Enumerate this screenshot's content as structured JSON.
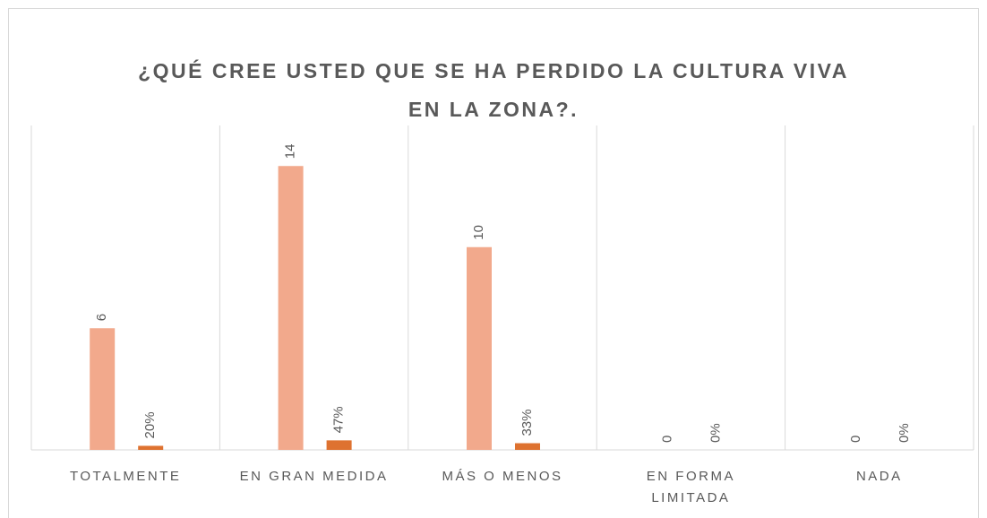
{
  "chart_data": {
    "type": "bar",
    "title": "¿QUÉ CREE USTED QUE SE HA PERDIDO LA CULTURA VIVA EN LA ZONA?.",
    "categories": [
      "TOTALMENTE",
      "EN GRAN MEDIDA",
      "MÁS O MENOS",
      "EN FORMA LIMITADA",
      "NADA"
    ],
    "series": [
      {
        "color": "#f2a98c",
        "values": [
          6,
          14,
          10,
          0,
          0
        ]
      },
      {
        "color": "#de7230",
        "values": [
          0.2,
          0.47,
          0.33,
          0,
          0
        ],
        "value_labels": [
          "20%",
          "47%",
          "33%",
          "0%",
          "0%"
        ]
      }
    ],
    "ylim": [
      0,
      16
    ]
  }
}
